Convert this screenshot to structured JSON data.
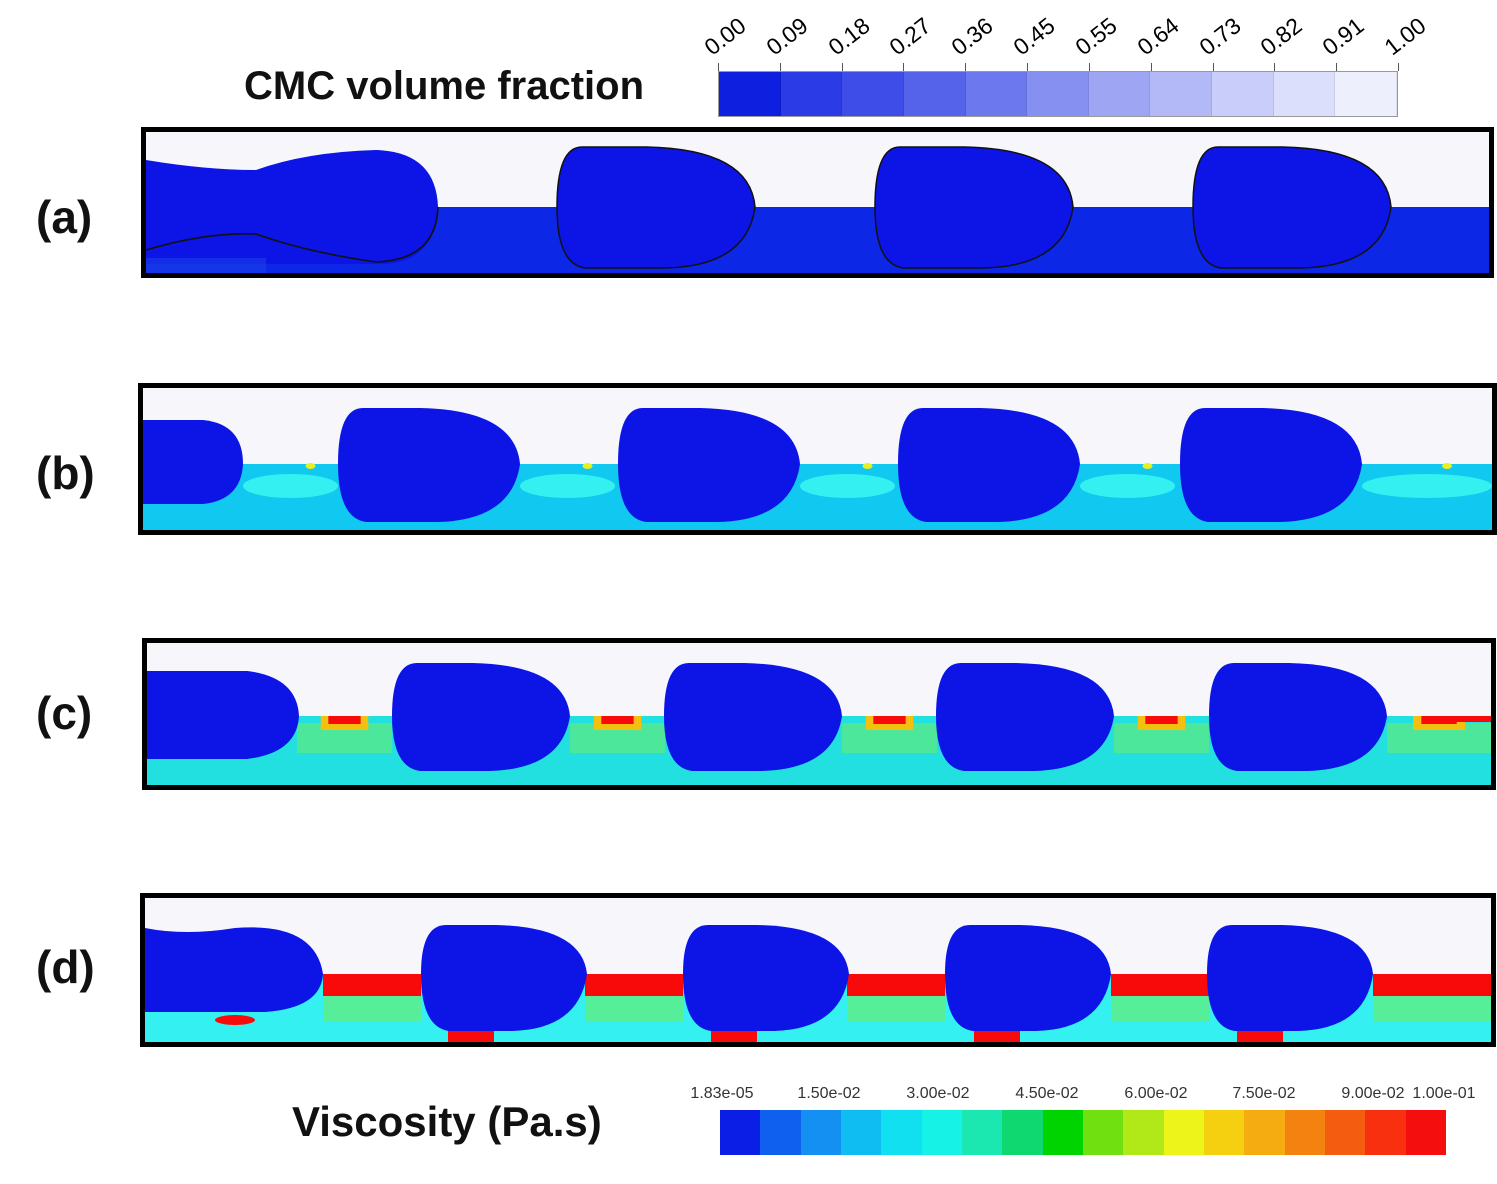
{
  "cmc_colorbar": {
    "title": "CMC volume fraction",
    "ticks": [
      "0.00",
      "0.09",
      "0.18",
      "0.27",
      "0.36",
      "0.45",
      "0.55",
      "0.64",
      "0.73",
      "0.82",
      "0.91",
      "1.00"
    ],
    "colors": [
      "#0f1fe0",
      "#2b3be5",
      "#3e4de8",
      "#5563eb",
      "#6c78ee",
      "#8690f1",
      "#9ea6f4",
      "#b3b9f6",
      "#c9cdf9",
      "#dcdffb",
      "#eeeffd"
    ]
  },
  "viscosity_colorbar": {
    "title": "Viscosity (Pa.s)",
    "ticks": [
      "1.83e-05",
      "1.50e-02",
      "3.00e-02",
      "4.50e-02",
      "6.00e-02",
      "7.50e-02",
      "9.00e-02",
      "1.00e-01"
    ],
    "colors": [
      "#0a1ee6",
      "#1060f0",
      "#1390f2",
      "#10bdf3",
      "#10e0f0",
      "#16f2e6",
      "#1ae8b0",
      "#10d870",
      "#00d400",
      "#70e010",
      "#b0e818",
      "#ecf41a",
      "#f4d010",
      "#f4ac10",
      "#f48210",
      "#f45c10",
      "#f83010",
      "#f40e0e"
    ]
  },
  "panels": [
    {
      "label": "(a)"
    },
    {
      "label": "(b)"
    },
    {
      "label": "(c)"
    },
    {
      "label": "(d)"
    }
  ],
  "colors": {
    "drop": "#0c14e6",
    "lower_a": "#0c28e6",
    "lower_b": "#10c8f0",
    "lower_c": "#22e0e0",
    "high": "#f80a0a",
    "green": "#70ec60",
    "cyan": "#34f0f0",
    "background": "#f6f6fb"
  }
}
